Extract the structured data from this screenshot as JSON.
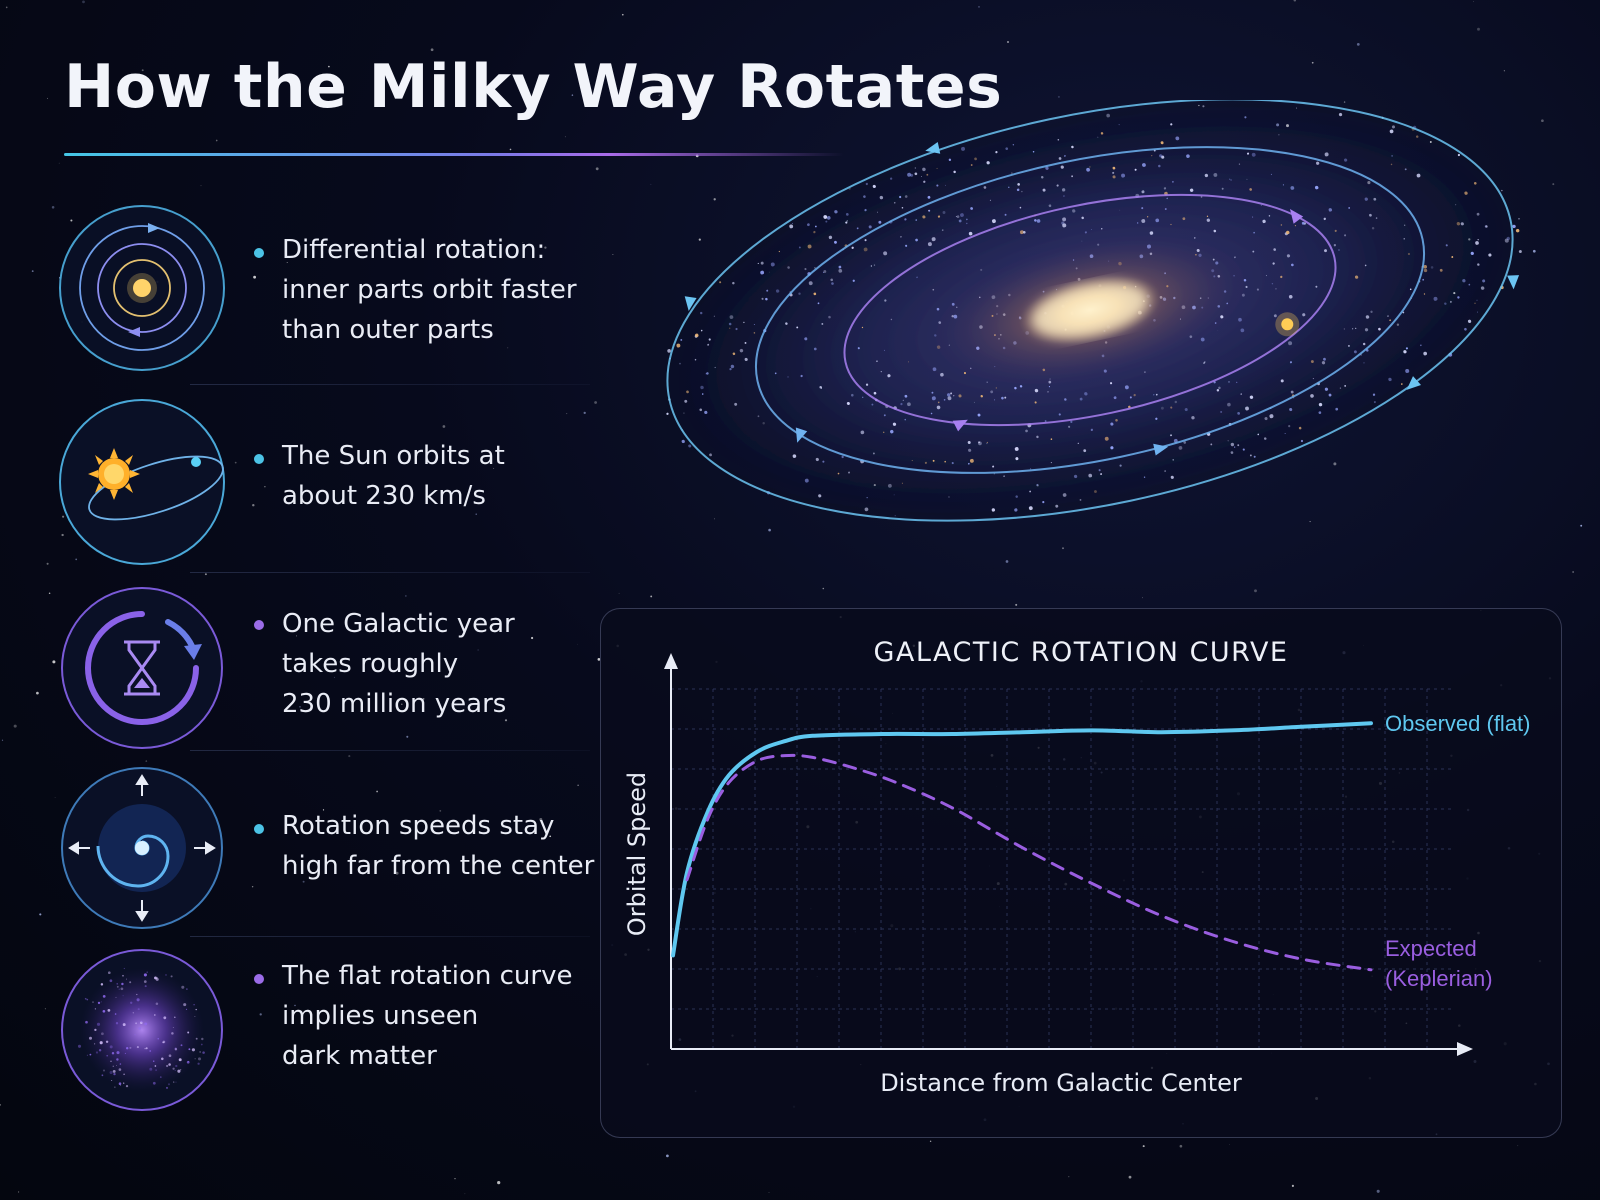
{
  "title": "How the Milky Way Rotates",
  "facts": [
    {
      "text": "Differential rotation:\ninner parts orbit faster\nthan outer parts",
      "icon": "orbit-rings-icon",
      "bullet_color": "#4cc3e6"
    },
    {
      "text": "The Sun orbits at\nabout 230 km/s",
      "icon": "sun-orbit-icon",
      "bullet_color": "#4cc3e6"
    },
    {
      "text": "One Galactic year\ntakes roughly\n230 million years",
      "icon": "hourglass-cycle-icon",
      "bullet_color": "#9b6ce8"
    },
    {
      "text": "Rotation speeds stay\nhigh far from the center",
      "icon": "spiral-galaxy-icon",
      "bullet_color": "#4cc3e6"
    },
    {
      "text": "The flat rotation curve\nimplies unseen\ndark matter",
      "icon": "dark-matter-cloud-icon",
      "bullet_color": "#9b6ce8"
    }
  ],
  "chart_data": {
    "type": "line",
    "title": "GALACTIC ROTATION CURVE",
    "xlabel": "Distance from Galactic Center",
    "ylabel": "Orbital Speed",
    "xlim": [
      0,
      10
    ],
    "ylim": [
      0,
      10
    ],
    "grid": true,
    "legend": "inline-right",
    "series": [
      {
        "name": "Observed (flat)",
        "color": "#5fc8f0",
        "style": "solid",
        "x": [
          0,
          0.2,
          0.5,
          0.8,
          1.2,
          1.6,
          2.0,
          3.0,
          4.0,
          5.0,
          6.0,
          7.0,
          8.0,
          9.0,
          10.0
        ],
        "y": [
          2.6,
          4.9,
          6.6,
          7.6,
          8.25,
          8.55,
          8.7,
          8.75,
          8.75,
          8.8,
          8.85,
          8.8,
          8.85,
          8.95,
          9.05
        ]
      },
      {
        "name": "Expected\n(Keplerian)",
        "color": "#9a5ee0",
        "style": "dashed",
        "x": [
          0.2,
          0.5,
          0.8,
          1.2,
          1.6,
          2.0,
          2.6,
          3.2,
          4.0,
          5.0,
          6.0,
          7.0,
          8.0,
          9.0,
          10.0
        ],
        "y": [
          4.7,
          6.4,
          7.4,
          8.0,
          8.15,
          8.1,
          7.8,
          7.4,
          6.7,
          5.6,
          4.6,
          3.7,
          3.0,
          2.5,
          2.2
        ]
      }
    ]
  }
}
